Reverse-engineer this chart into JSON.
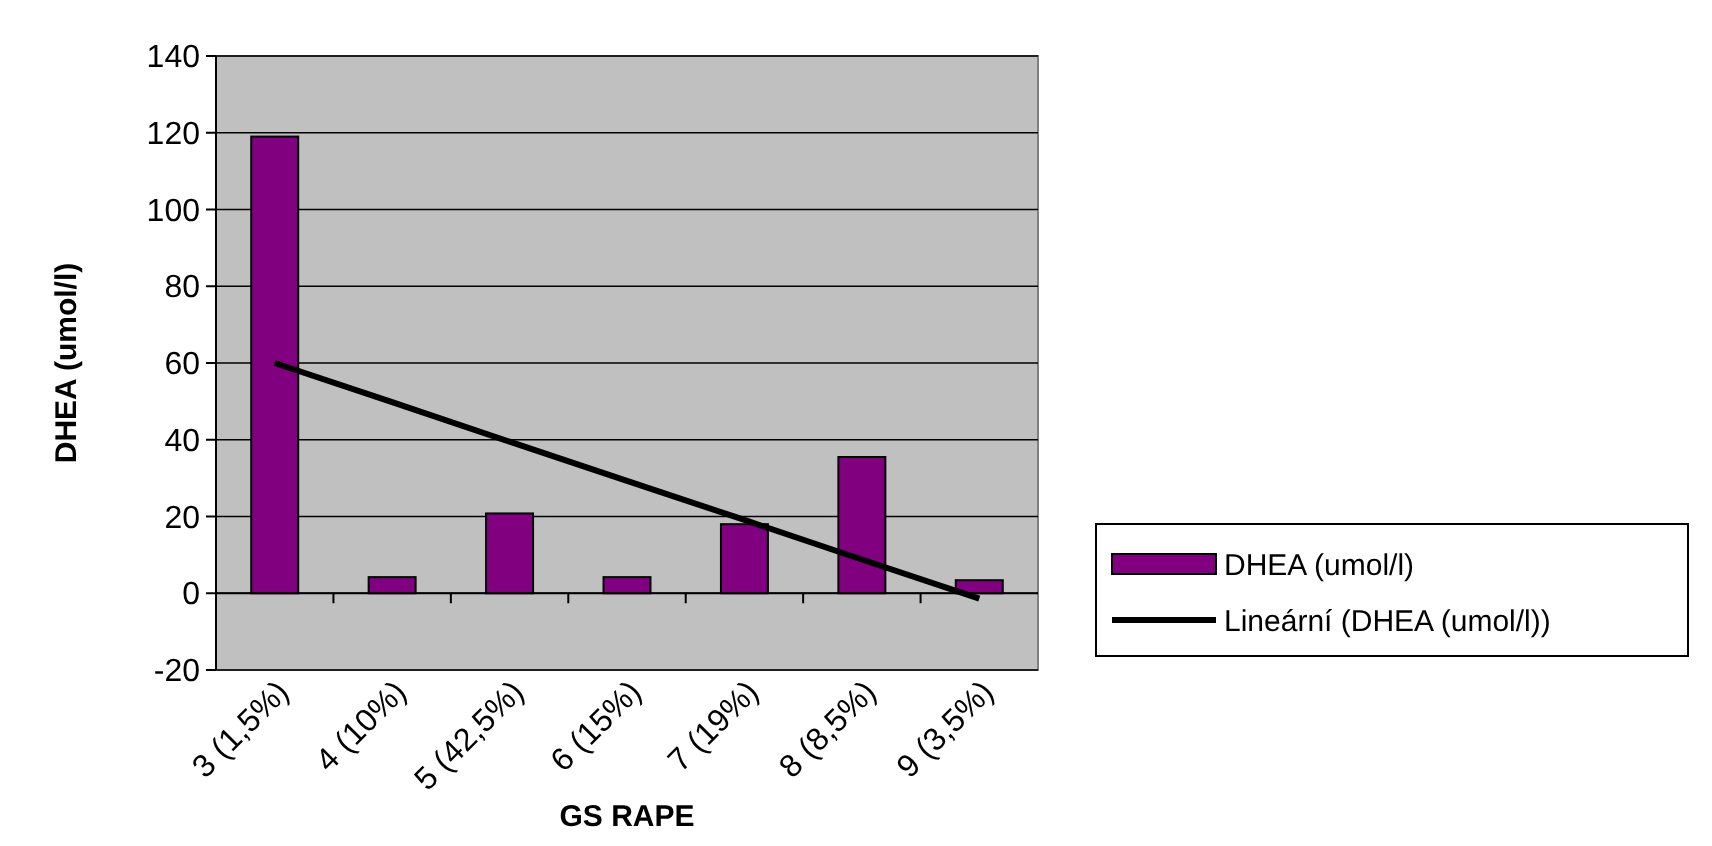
{
  "chart_data": {
    "type": "bar",
    "xlabel": "GS RAPE",
    "ylabel": "DHEA (umol/l)",
    "categories": [
      "3 (1,5%)",
      "4 (10%)",
      "5 (42,5%)",
      "6 (15%)",
      "7 (19%)",
      "8 (8,5%)",
      "9 (3,5%)"
    ],
    "series": [
      {
        "name": "DHEA (umol/l)",
        "color": "#800080",
        "values": [
          119,
          4.2,
          20.8,
          4.2,
          18,
          35.5,
          3.4
        ]
      },
      {
        "name": "Lineární (DHEA (umol/l))",
        "type": "line",
        "color": "#000000",
        "values": [
          60.0,
          49.8,
          39.5,
          29.3,
          19.1,
          8.8,
          -1.4
        ]
      }
    ],
    "ylim": [
      -20,
      140
    ],
    "yticks": [
      -20,
      0,
      20,
      40,
      60,
      80,
      100,
      120,
      140
    ],
    "grid": "y",
    "legend": "right"
  }
}
